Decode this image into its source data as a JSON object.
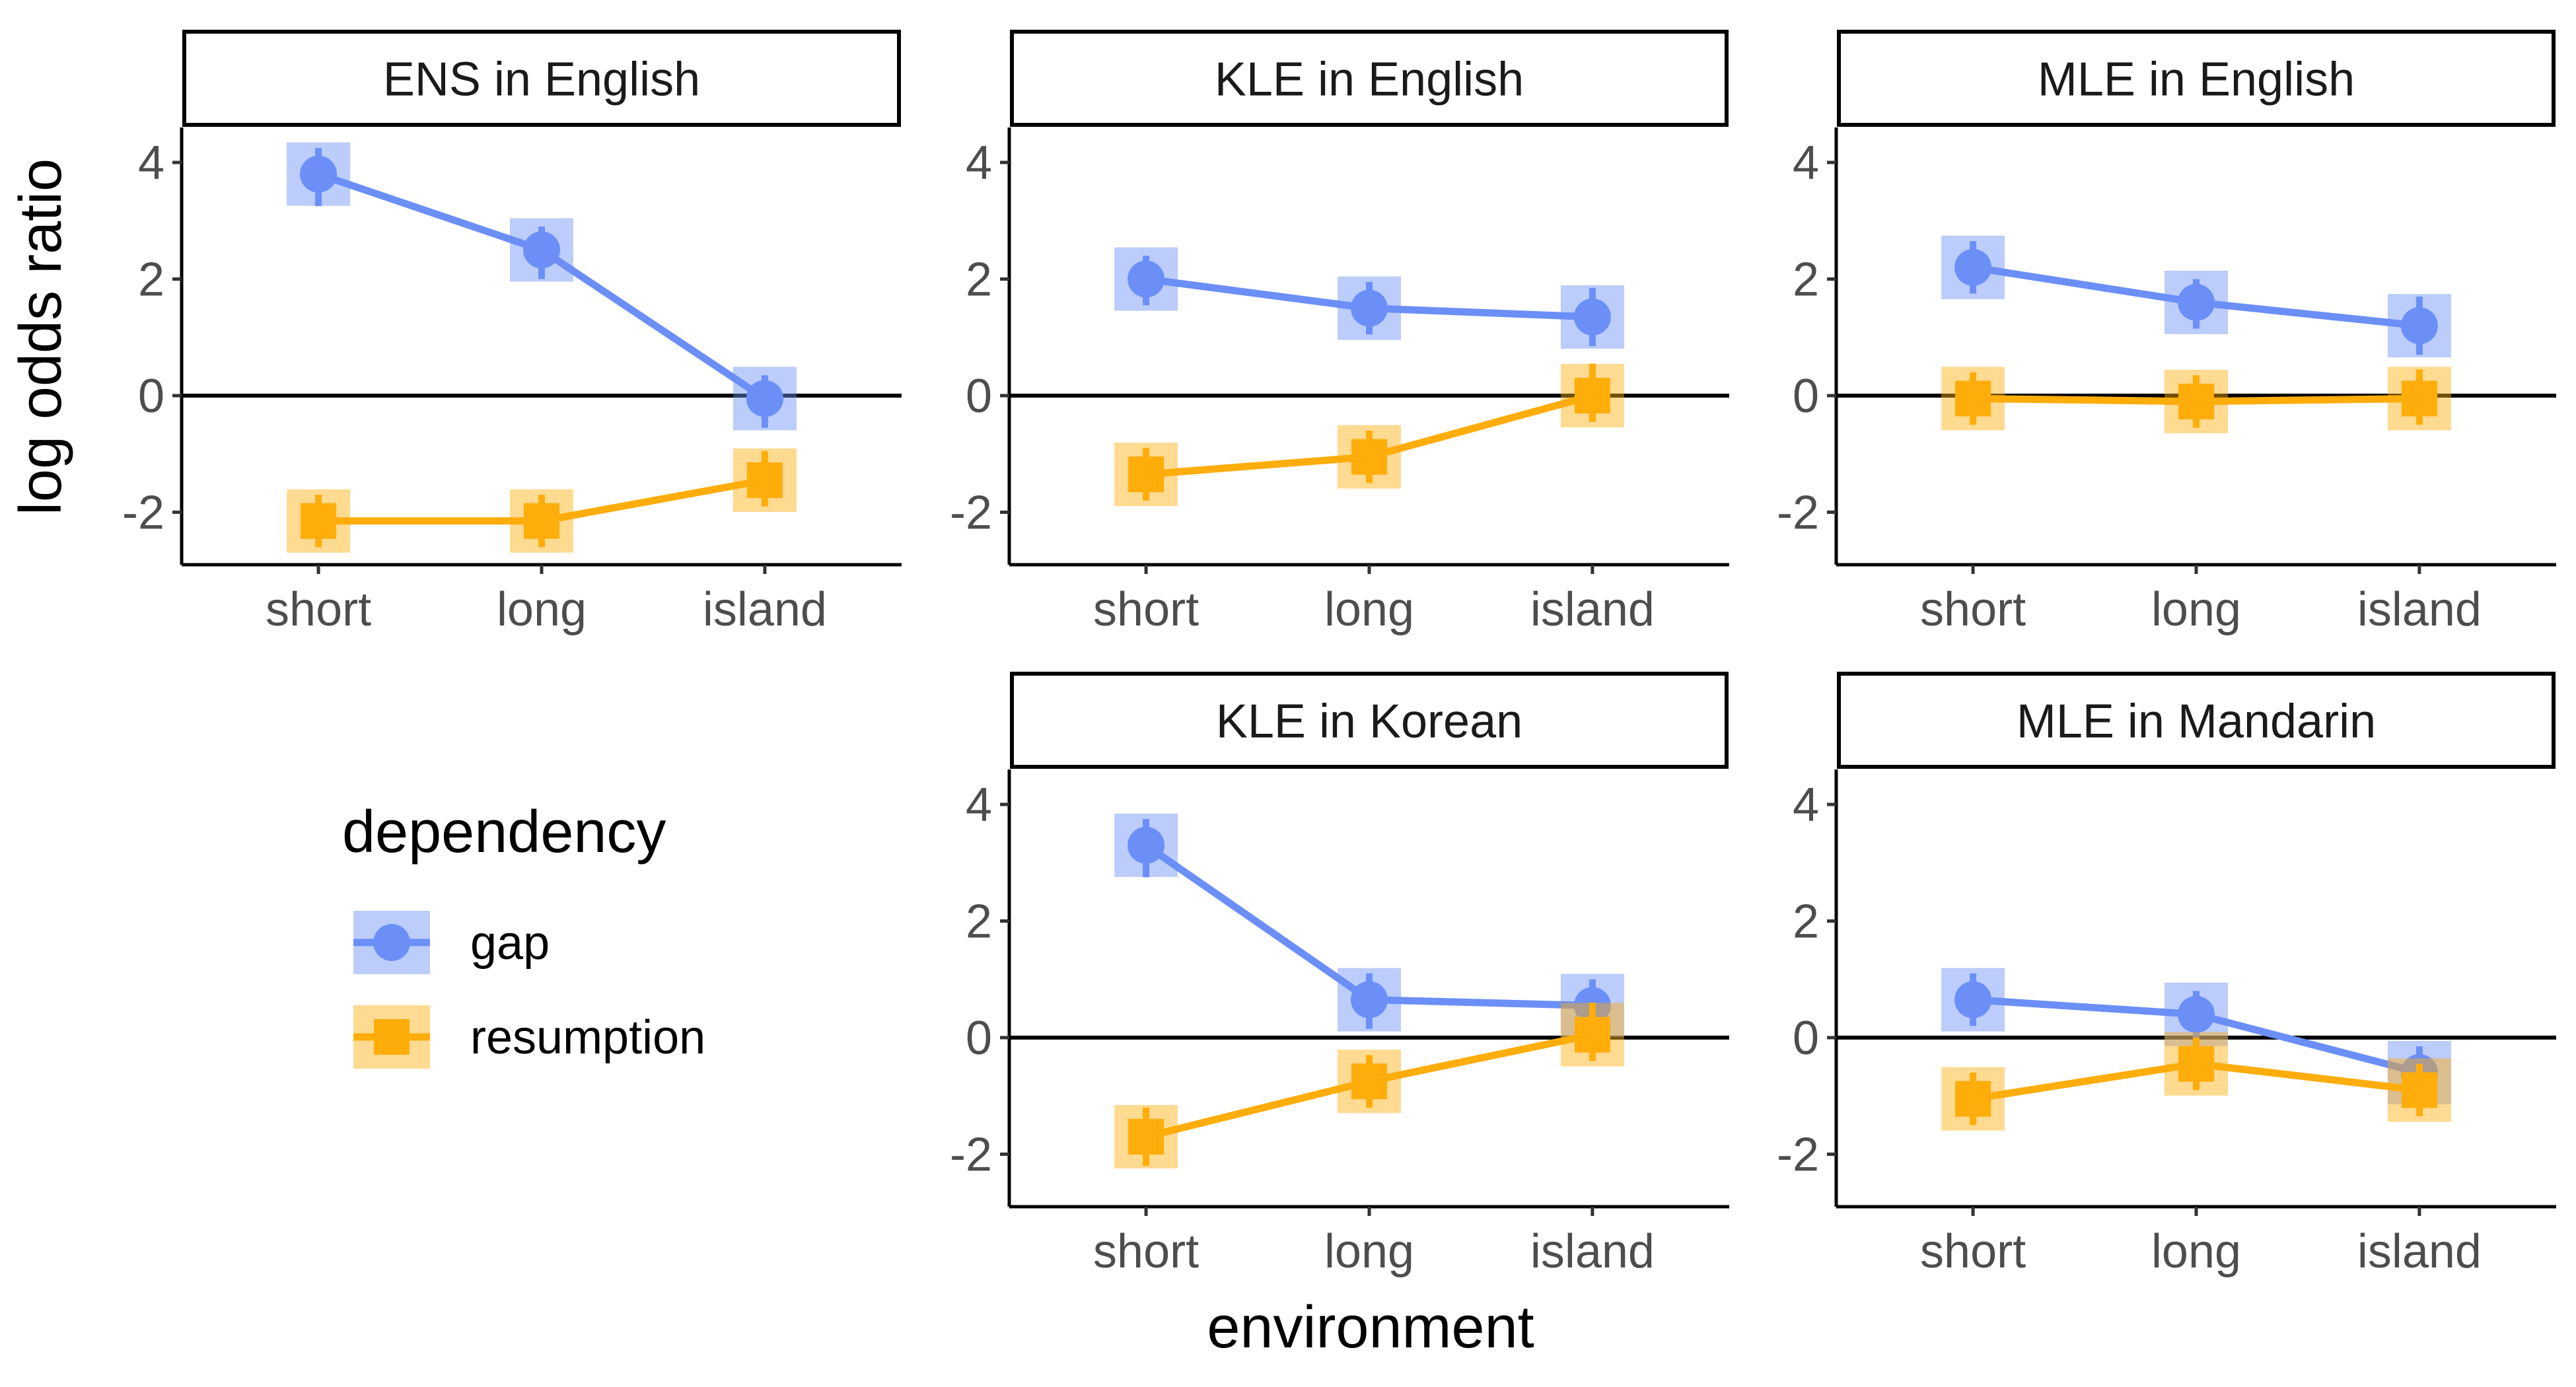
{
  "chart_data": {
    "type": "line",
    "xlabel": "environment",
    "ylabel": "log odds ratio",
    "categories": [
      "short",
      "long",
      "island"
    ],
    "ylim": [
      -2.9,
      4.6
    ],
    "yticks": [
      4,
      2,
      0,
      -2
    ],
    "ytick_labels": [
      "4",
      "2",
      "0",
      "-2"
    ],
    "reference_line": 0,
    "grid": false,
    "legend": {
      "title": "dependency",
      "placement": "bottom-left",
      "entries": [
        "gap",
        "resumption"
      ]
    },
    "colors": {
      "gap": "#6b8ff7",
      "resumption": "#ffad0a"
    },
    "panels": [
      {
        "strip": "ENS in English",
        "series": [
          {
            "name": "gap",
            "values": [
              3.8,
              2.5,
              -0.05
            ],
            "ci_low": [
              3.25,
              2.0,
              -0.55
            ],
            "ci_high": [
              4.25,
              2.9,
              0.35
            ]
          },
          {
            "name": "resumption",
            "values": [
              -2.15,
              -2.15,
              -1.45
            ],
            "ci_low": [
              -2.6,
              -2.6,
              -1.9
            ],
            "ci_high": [
              -1.7,
              -1.7,
              -0.95
            ]
          }
        ]
      },
      {
        "strip": "KLE in English",
        "series": [
          {
            "name": "gap",
            "values": [
              2.0,
              1.5,
              1.35
            ],
            "ci_low": [
              1.55,
              1.05,
              0.85
            ],
            "ci_high": [
              2.4,
              1.95,
              1.85
            ]
          },
          {
            "name": "resumption",
            "values": [
              -1.35,
              -1.05,
              0.0
            ],
            "ci_low": [
              -1.8,
              -1.5,
              -0.45
            ],
            "ci_high": [
              -0.9,
              -0.6,
              0.55
            ]
          }
        ]
      },
      {
        "strip": "MLE in English",
        "series": [
          {
            "name": "gap",
            "values": [
              2.2,
              1.6,
              1.2
            ],
            "ci_low": [
              1.75,
              1.15,
              0.7
            ],
            "ci_high": [
              2.65,
              2.0,
              1.7
            ]
          },
          {
            "name": "resumption",
            "values": [
              -0.05,
              -0.1,
              -0.05
            ],
            "ci_low": [
              -0.5,
              -0.55,
              -0.5
            ],
            "ci_high": [
              0.4,
              0.35,
              0.45
            ]
          }
        ]
      },
      {
        "strip": "KLE in Korean",
        "series": [
          {
            "name": "gap",
            "values": [
              3.3,
              0.65,
              0.55
            ],
            "ci_low": [
              2.75,
              0.15,
              0.05
            ],
            "ci_high": [
              3.75,
              1.1,
              1.0
            ]
          },
          {
            "name": "resumption",
            "values": [
              -1.7,
              -0.75,
              0.05
            ],
            "ci_low": [
              -2.2,
              -1.2,
              -0.4
            ],
            "ci_high": [
              -1.2,
              -0.3,
              0.6
            ]
          }
        ]
      },
      {
        "strip": "MLE in Mandarin",
        "series": [
          {
            "name": "gap",
            "values": [
              0.65,
              0.4,
              -0.6
            ],
            "ci_low": [
              0.2,
              -0.1,
              -1.05
            ],
            "ci_high": [
              1.1,
              0.8,
              -0.15
            ]
          },
          {
            "name": "resumption",
            "values": [
              -1.05,
              -0.45,
              -0.9
            ],
            "ci_low": [
              -1.5,
              -0.9,
              -1.35
            ],
            "ci_high": [
              -0.6,
              0.0,
              -0.45
            ]
          }
        ]
      }
    ]
  }
}
